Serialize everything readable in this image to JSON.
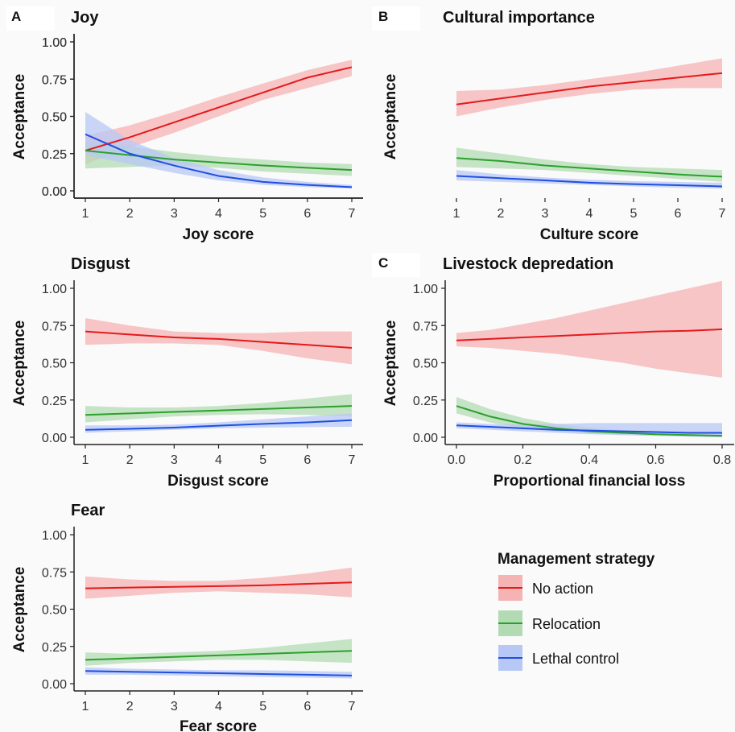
{
  "colors": {
    "no_action": "#e41a1c",
    "relocation": "#2ca02c",
    "lethal_control": "#1f4fe0"
  },
  "legend": {
    "title": "Management strategy",
    "items": [
      {
        "label": "No action",
        "color": "#e41a1c"
      },
      {
        "label": "Relocation",
        "color": "#2ca02c"
      },
      {
        "label": "Lethal control",
        "color": "#1f4fe0"
      }
    ]
  },
  "chart_data": [
    {
      "type": "line",
      "panel_label": "A",
      "title": "Joy",
      "xlabel": "Joy score",
      "ylabel": "Acceptance",
      "xlim": [
        1,
        7
      ],
      "ylim": [
        0,
        1
      ],
      "xticks": [
        "1",
        "2",
        "3",
        "4",
        "5",
        "6",
        "7"
      ],
      "yticks": [
        "0.00",
        "0.25",
        "0.50",
        "0.75",
        "1.00"
      ],
      "x": [
        1,
        2,
        3,
        4,
        5,
        6,
        7
      ],
      "series": [
        {
          "name": "No action",
          "values": [
            0.27,
            0.36,
            0.46,
            0.56,
            0.66,
            0.76,
            0.83
          ],
          "lower": [
            0.18,
            0.29,
            0.39,
            0.5,
            0.61,
            0.69,
            0.77
          ],
          "upper": [
            0.37,
            0.44,
            0.53,
            0.63,
            0.72,
            0.81,
            0.88
          ]
        },
        {
          "name": "Relocation",
          "values": [
            0.27,
            0.24,
            0.21,
            0.19,
            0.17,
            0.155,
            0.14
          ],
          "lower": [
            0.15,
            0.16,
            0.17,
            0.155,
            0.13,
            0.115,
            0.1
          ],
          "upper": [
            0.33,
            0.3,
            0.26,
            0.23,
            0.21,
            0.19,
            0.18
          ]
        },
        {
          "name": "Lethal control",
          "values": [
            0.38,
            0.25,
            0.17,
            0.1,
            0.06,
            0.04,
            0.025
          ],
          "lower": [
            0.24,
            0.18,
            0.12,
            0.07,
            0.04,
            0.025,
            0.015
          ],
          "upper": [
            0.53,
            0.34,
            0.22,
            0.14,
            0.09,
            0.06,
            0.04
          ]
        }
      ]
    },
    {
      "type": "line",
      "panel_label": "B",
      "title": "Cultural importance",
      "xlabel": "Culture score",
      "ylabel": "Acceptance",
      "xlim": [
        1,
        7
      ],
      "ylim": [
        0,
        1
      ],
      "xticks": [
        "1",
        "2",
        "3",
        "4",
        "5",
        "6",
        "7"
      ],
      "yticks": [
        "0.00",
        "0.25",
        "0.50",
        "0.75",
        "1.00"
      ],
      "x": [
        1,
        2,
        3,
        4,
        5,
        6,
        7
      ],
      "series": [
        {
          "name": "No action",
          "values": [
            0.58,
            0.62,
            0.66,
            0.7,
            0.73,
            0.76,
            0.79
          ],
          "lower": [
            0.5,
            0.56,
            0.61,
            0.65,
            0.68,
            0.69,
            0.69
          ],
          "upper": [
            0.67,
            0.68,
            0.71,
            0.75,
            0.79,
            0.84,
            0.89
          ]
        },
        {
          "name": "Relocation",
          "values": [
            0.22,
            0.2,
            0.17,
            0.15,
            0.13,
            0.11,
            0.095
          ],
          "lower": [
            0.16,
            0.15,
            0.14,
            0.12,
            0.1,
            0.08,
            0.06
          ],
          "upper": [
            0.29,
            0.25,
            0.21,
            0.18,
            0.16,
            0.15,
            0.14
          ]
        },
        {
          "name": "Lethal control",
          "values": [
            0.1,
            0.085,
            0.07,
            0.055,
            0.045,
            0.038,
            0.03
          ],
          "lower": [
            0.07,
            0.06,
            0.05,
            0.04,
            0.03,
            0.02,
            0.015
          ],
          "upper": [
            0.14,
            0.11,
            0.09,
            0.075,
            0.065,
            0.06,
            0.055
          ]
        }
      ]
    },
    {
      "type": "line",
      "panel_label": "",
      "title": "Disgust",
      "xlabel": "Disgust score",
      "ylabel": "Acceptance",
      "xlim": [
        1,
        7
      ],
      "ylim": [
        0,
        1
      ],
      "xticks": [
        "1",
        "2",
        "3",
        "4",
        "5",
        "6",
        "7"
      ],
      "yticks": [
        "0.00",
        "0.25",
        "0.50",
        "0.75",
        "1.00"
      ],
      "x": [
        1,
        2,
        3,
        4,
        5,
        6,
        7
      ],
      "series": [
        {
          "name": "No action",
          "values": [
            0.71,
            0.69,
            0.67,
            0.66,
            0.64,
            0.62,
            0.6
          ],
          "lower": [
            0.62,
            0.63,
            0.63,
            0.62,
            0.58,
            0.53,
            0.49
          ],
          "upper": [
            0.8,
            0.75,
            0.71,
            0.7,
            0.7,
            0.71,
            0.71
          ]
        },
        {
          "name": "Relocation",
          "values": [
            0.15,
            0.16,
            0.17,
            0.18,
            0.19,
            0.2,
            0.21
          ],
          "lower": [
            0.1,
            0.12,
            0.14,
            0.15,
            0.155,
            0.15,
            0.14
          ],
          "upper": [
            0.21,
            0.2,
            0.2,
            0.21,
            0.23,
            0.26,
            0.29
          ]
        },
        {
          "name": "Lethal control",
          "values": [
            0.05,
            0.057,
            0.065,
            0.078,
            0.09,
            0.1,
            0.115
          ],
          "lower": [
            0.03,
            0.04,
            0.05,
            0.06,
            0.065,
            0.068,
            0.07
          ],
          "upper": [
            0.08,
            0.08,
            0.085,
            0.1,
            0.12,
            0.14,
            0.16
          ]
        }
      ]
    },
    {
      "type": "line",
      "panel_label": "C",
      "title": "Livestock depredation",
      "xlabel": "Proportional financial loss",
      "ylabel": "Acceptance",
      "xlim": [
        -0.03,
        0.82
      ],
      "ylim": [
        0,
        1
      ],
      "xticks": [
        "0.0",
        "0.2",
        "0.4",
        "0.6",
        "0.8"
      ],
      "yticks": [
        "0.00",
        "0.25",
        "0.50",
        "0.75",
        "1.00"
      ],
      "x": [
        0.0,
        0.1,
        0.2,
        0.3,
        0.4,
        0.5,
        0.6,
        0.7,
        0.8
      ],
      "series": [
        {
          "name": "No action",
          "values": [
            0.65,
            0.66,
            0.67,
            0.68,
            0.69,
            0.7,
            0.71,
            0.715,
            0.725
          ],
          "lower": [
            0.61,
            0.6,
            0.58,
            0.56,
            0.53,
            0.5,
            0.46,
            0.43,
            0.4
          ],
          "upper": [
            0.7,
            0.72,
            0.76,
            0.8,
            0.85,
            0.9,
            0.95,
            1.0,
            1.05
          ]
        },
        {
          "name": "Relocation",
          "values": [
            0.21,
            0.14,
            0.09,
            0.06,
            0.04,
            0.03,
            0.02,
            0.015,
            0.01
          ],
          "lower": [
            0.16,
            0.1,
            0.06,
            0.04,
            0.025,
            0.015,
            0.01,
            0.005,
            0.0
          ],
          "upper": [
            0.27,
            0.19,
            0.13,
            0.09,
            0.065,
            0.05,
            0.04,
            0.035,
            0.03
          ]
        },
        {
          "name": "Lethal control",
          "values": [
            0.08,
            0.07,
            0.06,
            0.05,
            0.045,
            0.04,
            0.035,
            0.03,
            0.03
          ],
          "lower": [
            0.06,
            0.05,
            0.04,
            0.03,
            0.02,
            0.015,
            0.01,
            0.005,
            0.0
          ],
          "upper": [
            0.1,
            0.09,
            0.085,
            0.09,
            0.095,
            0.095,
            0.095,
            0.095,
            0.095
          ]
        }
      ]
    },
    {
      "type": "line",
      "panel_label": "",
      "title": "Fear",
      "xlabel": "Fear score",
      "ylabel": "Acceptance",
      "xlim": [
        1,
        7
      ],
      "ylim": [
        0,
        1
      ],
      "xticks": [
        "1",
        "2",
        "3",
        "4",
        "5",
        "6",
        "7"
      ],
      "yticks": [
        "0.00",
        "0.25",
        "0.50",
        "0.75",
        "1.00"
      ],
      "x": [
        1,
        2,
        3,
        4,
        5,
        6,
        7
      ],
      "series": [
        {
          "name": "No action",
          "values": [
            0.64,
            0.645,
            0.65,
            0.655,
            0.66,
            0.67,
            0.68
          ],
          "lower": [
            0.57,
            0.59,
            0.61,
            0.62,
            0.61,
            0.6,
            0.58
          ],
          "upper": [
            0.72,
            0.7,
            0.69,
            0.69,
            0.71,
            0.74,
            0.78
          ]
        },
        {
          "name": "Relocation",
          "values": [
            0.16,
            0.17,
            0.18,
            0.19,
            0.2,
            0.21,
            0.22
          ],
          "lower": [
            0.12,
            0.14,
            0.15,
            0.16,
            0.16,
            0.15,
            0.14
          ],
          "upper": [
            0.21,
            0.2,
            0.21,
            0.22,
            0.24,
            0.27,
            0.3
          ]
        },
        {
          "name": "Lethal control",
          "values": [
            0.085,
            0.08,
            0.075,
            0.07,
            0.065,
            0.06,
            0.055
          ],
          "lower": [
            0.06,
            0.06,
            0.055,
            0.05,
            0.045,
            0.04,
            0.035
          ],
          "upper": [
            0.11,
            0.1,
            0.095,
            0.09,
            0.09,
            0.085,
            0.08
          ]
        }
      ]
    }
  ]
}
